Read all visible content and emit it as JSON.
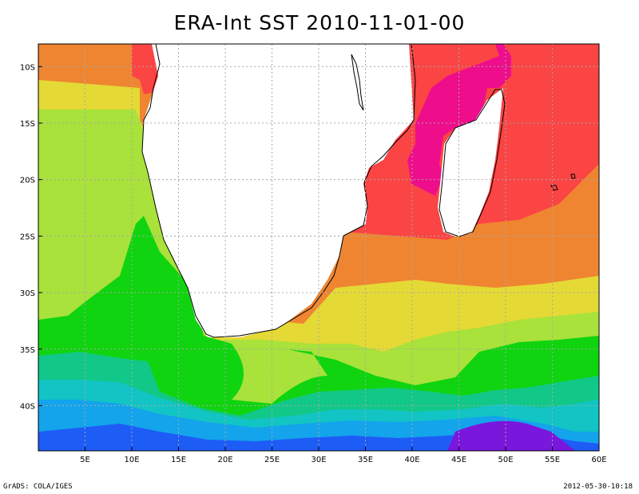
{
  "title": "ERA-Int SST 2010-11-01-00",
  "footer": {
    "left": "GrADS: COLA/IGES",
    "right": "2012-05-30-10:18"
  },
  "colors": {
    "magenta": "#ee0e8c",
    "red": "#fb4444",
    "orange": "#ef8531",
    "yellow": "#e5d935",
    "yellowgreen": "#a8e23a",
    "green": "#10d410",
    "teal": "#11c888",
    "cyan": "#12c4c4",
    "skyblue": "#13a4ec",
    "blue": "#1e5cf6",
    "purple": "#7a17dc",
    "land": "#ffffff",
    "coast": "#000000",
    "grid": "#a8a8a8"
  },
  "chart_data": {
    "type": "heatmap",
    "variable": "SST",
    "lon_range": [
      0,
      60
    ],
    "lat_range": [
      -44,
      -8
    ],
    "x_ticks": [
      "5E",
      "10E",
      "15E",
      "20E",
      "25E",
      "30E",
      "35E",
      "40E",
      "45E",
      "50E",
      "55E",
      "60E"
    ],
    "y_ticks": [
      "10S",
      "15S",
      "20S",
      "25S",
      "30S",
      "35S",
      "40S"
    ],
    "grid": true,
    "colorbar": false
  }
}
